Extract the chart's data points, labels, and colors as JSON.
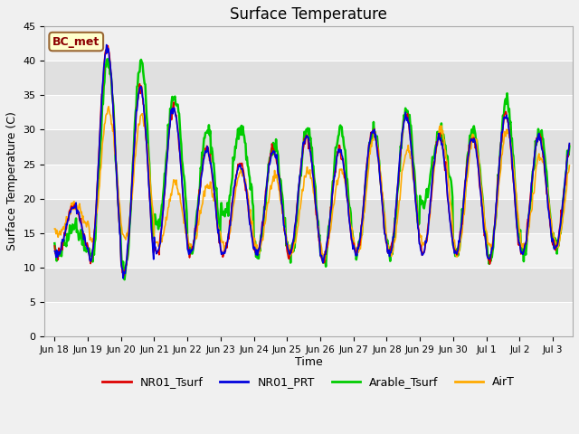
{
  "title": "Surface Temperature",
  "xlabel": "Time",
  "ylabel": "Surface Temperature (C)",
  "ylim": [
    0,
    45
  ],
  "yticks": [
    0,
    5,
    10,
    15,
    20,
    25,
    30,
    35,
    40,
    45
  ],
  "annotation": "BC_met",
  "series_colors": {
    "NR01_Tsurf": "#dd0000",
    "NR01_PRT": "#0000dd",
    "Arable_Tsurf": "#00cc00",
    "AirT": "#ffaa00"
  },
  "series_linewidths": {
    "NR01_Tsurf": 1.2,
    "NR01_PRT": 1.2,
    "Arable_Tsurf": 1.8,
    "AirT": 1.2
  },
  "background_color": "#f0f0f0",
  "grid_stripe_light": "#f8f8f8",
  "grid_stripe_dark": "#e0e0e0",
  "xticklabels": [
    "Jun 18",
    "Jun 19",
    "Jun 20",
    "Jun 21",
    "Jun 22",
    "Jun 23",
    "Jun 24",
    "Jun 25",
    "Jun 26",
    "Jun 27",
    "Jun 28",
    "Jun 29",
    "Jun 30",
    "Jul 1",
    "Jul 2",
    "Jul 3"
  ],
  "xtick_positions_days": [
    0,
    1,
    2,
    3,
    4,
    5,
    6,
    7,
    8,
    9,
    10,
    11,
    12,
    13,
    14,
    15
  ],
  "daily_peaks_NR01": [
    19,
    42,
    36,
    33,
    27,
    25,
    27,
    29,
    27,
    30,
    32,
    29,
    29,
    32,
    29,
    29
  ],
  "daily_peaks_arable": [
    16,
    40,
    40,
    35,
    30,
    30,
    28,
    30,
    30,
    30,
    33,
    30,
    30,
    34,
    30,
    30
  ],
  "daily_peaks_air": [
    19,
    33,
    32,
    22,
    22,
    24,
    23,
    24,
    24,
    29,
    27,
    30,
    29,
    30,
    26,
    27
  ],
  "daily_mins_NR01": [
    12,
    11,
    9,
    12,
    12,
    12,
    12,
    12,
    11,
    12,
    12,
    12,
    12,
    11,
    12,
    13
  ],
  "daily_mins_arable": [
    12,
    11,
    9,
    16,
    12,
    17,
    12,
    12,
    11,
    12,
    12,
    19,
    12,
    11,
    12,
    13
  ],
  "daily_mins_air": [
    15,
    14,
    14,
    13,
    13,
    13,
    12,
    12,
    12,
    12,
    12,
    13,
    12,
    13,
    13,
    13
  ]
}
